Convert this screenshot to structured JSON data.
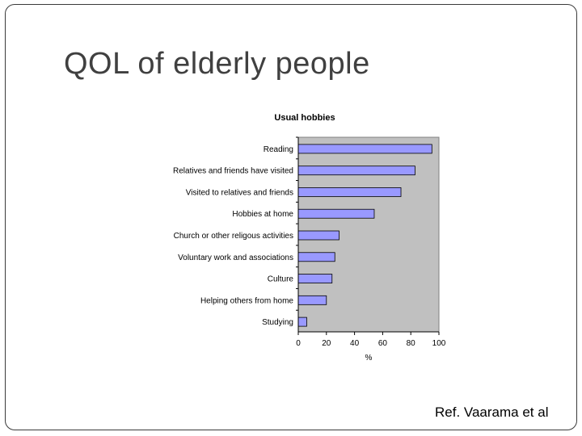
{
  "slide": {
    "title": "QOL of elderly people",
    "reference": "Ref. Vaarama et al"
  },
  "chart_data": {
    "type": "bar",
    "orientation": "horizontal",
    "title": "Usual hobbies",
    "xlabel": "%",
    "ylabel": "",
    "xlim": [
      0,
      100
    ],
    "xticks": [
      0,
      20,
      40,
      60,
      80,
      100
    ],
    "categories": [
      "Reading",
      "Relatives and friends have visited",
      "Visited to relatives and friends",
      "Hobbies at home",
      "Church or other religous activities",
      "Voluntary work and associations",
      "Culture",
      "Helping others from home",
      "Studying"
    ],
    "values": [
      95,
      83,
      73,
      54,
      29,
      26,
      24,
      20,
      6
    ],
    "bar_color": "#9999ff",
    "plot_background": "#c0c0c0",
    "grid": false,
    "legend": "none"
  }
}
